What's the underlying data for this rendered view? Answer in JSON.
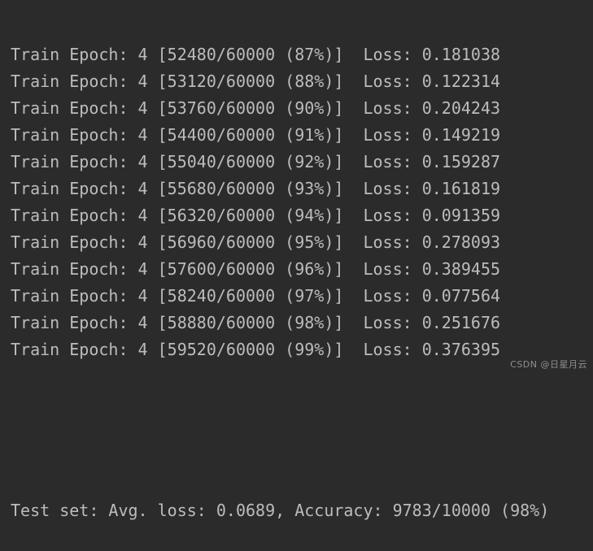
{
  "console": {
    "epoch": 4,
    "train_lines": [
      "Train Epoch: 4 [52480/60000 (87%)]  Loss: 0.181038",
      "Train Epoch: 4 [53120/60000 (88%)]  Loss: 0.122314",
      "Train Epoch: 4 [53760/60000 (90%)]  Loss: 0.204243",
      "Train Epoch: 4 [54400/60000 (91%)]  Loss: 0.149219",
      "Train Epoch: 4 [55040/60000 (92%)]  Loss: 0.159287",
      "Train Epoch: 4 [55680/60000 (93%)]  Loss: 0.161819",
      "Train Epoch: 4 [56320/60000 (94%)]  Loss: 0.091359",
      "Train Epoch: 4 [56960/60000 (95%)]  Loss: 0.278093",
      "Train Epoch: 4 [57600/60000 (96%)]  Loss: 0.389455",
      "Train Epoch: 4 [58240/60000 (97%)]  Loss: 0.077564",
      "Train Epoch: 4 [58880/60000 (98%)]  Loss: 0.251676",
      "Train Epoch: 4 [59520/60000 (99%)]  Loss: 0.376395"
    ],
    "test_line": "Test set: Avg. loss: 0.0689, Accuracy: 9783/10000 (98%)"
  },
  "watermark": {
    "text": "CSDN @日星月云"
  },
  "colors": {
    "background": "#2b2b2b",
    "text": "#bcbcbc",
    "watermark": "#8f8f8f"
  }
}
